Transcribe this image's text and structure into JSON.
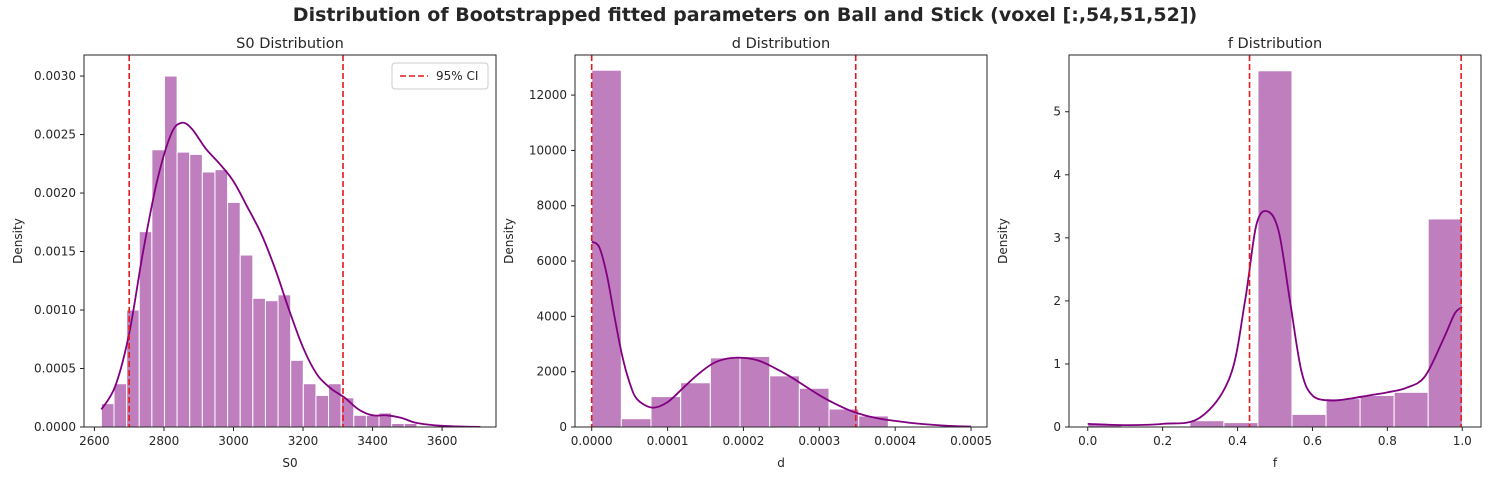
{
  "figure": {
    "title": "Distribution of Bootstrapped fitted parameters on Ball and Stick (voxel [:,54,51,52])"
  },
  "colors": {
    "bar_fill": "#bf7fbf",
    "bar_edge": "#ffffff",
    "kde_line": "#800080",
    "ci_line": "#e41a1c",
    "axes_edge": "#262626"
  },
  "legend": {
    "label": "95% CI",
    "placement": "upper right"
  },
  "chart_data": [
    {
      "type": "histogram",
      "title": "S0 Distribution",
      "xlabel": "S0",
      "ylabel": "Density",
      "xlim": [
        2570,
        3755
      ],
      "ylim": [
        0,
        0.00318
      ],
      "xticks": [
        2600,
        2800,
        3000,
        3200,
        3400,
        3600
      ],
      "xtick_labels": [
        "2600",
        "2800",
        "3000",
        "3200",
        "3400",
        "3600"
      ],
      "yticks": [
        0,
        0.0005,
        0.001,
        0.0015,
        0.002,
        0.0025,
        0.003
      ],
      "ytick_labels": [
        "0.0000",
        "0.0005",
        "0.0010",
        "0.0015",
        "0.0020",
        "0.0025",
        "0.0030"
      ],
      "bins_start": 2620,
      "bin_width": 36.3,
      "values": [
        0.0002,
        0.00037,
        0.001,
        0.00167,
        0.00237,
        0.003,
        0.00235,
        0.00233,
        0.00218,
        0.0022,
        0.00192,
        0.00147,
        0.0011,
        0.00108,
        0.00113,
        0.00057,
        0.00037,
        0.00027,
        0.00037,
        0.00025,
        0.0001,
        0.0001,
        0.00012,
        3e-05,
        3e-05,
        0,
        0,
        0,
        0,
        1e-05
      ],
      "kde_x": [
        2620,
        2660,
        2700,
        2740,
        2780,
        2820,
        2850,
        2880,
        2920,
        2960,
        3000,
        3040,
        3080,
        3120,
        3160,
        3200,
        3240,
        3280,
        3320,
        3360,
        3400,
        3440,
        3480,
        3520,
        3560,
        3600,
        3640,
        3680,
        3710
      ],
      "kde_y": [
        0.00015,
        0.00035,
        0.0008,
        0.0015,
        0.0021,
        0.0025,
        0.0026,
        0.00255,
        0.00238,
        0.00225,
        0.0021,
        0.00188,
        0.00165,
        0.00135,
        0.001,
        0.00068,
        0.00045,
        0.00033,
        0.00025,
        0.00015,
        0.0001,
        0.0001,
        8e-05,
        4e-05,
        2e-05,
        1e-05,
        5e-06,
        2e-06,
        1e-06
      ],
      "ci": [
        2700,
        3315
      ],
      "legend": true
    },
    {
      "type": "histogram",
      "title": "d Distribution",
      "xlabel": "d",
      "ylabel": "Density",
      "xlim": [
        -2.2e-05,
        0.000521
      ],
      "ylim": [
        0,
        13450
      ],
      "xticks": [
        0,
        0.0001,
        0.0002,
        0.0003,
        0.0004,
        0.0005
      ],
      "xtick_labels": [
        "0.0000",
        "0.0001",
        "0.0002",
        "0.0003",
        "0.0004",
        "0.0005"
      ],
      "yticks": [
        0,
        2000,
        4000,
        6000,
        8000,
        10000,
        12000
      ],
      "ytick_labels": [
        "0",
        "2000",
        "4000",
        "6000",
        "8000",
        "10000",
        "12000"
      ],
      "bins_start": 0,
      "bin_width": 3.91e-05,
      "values": [
        12900,
        300,
        1100,
        1600,
        2500,
        2550,
        1850,
        1400,
        650,
        400,
        0,
        0,
        0
      ],
      "kde_x": [
        0,
        1e-05,
        2e-05,
        3e-05,
        4e-05,
        5e-05,
        6e-05,
        8e-05,
        0.0001,
        0.00012,
        0.00014,
        0.00016,
        0.00018,
        0.0002,
        0.00022,
        0.00024,
        0.00026,
        0.00028,
        0.0003,
        0.00032,
        0.00034,
        0.00036,
        0.00038,
        0.0004,
        0.00042,
        0.00044,
        0.00046,
        0.00048,
        0.0005
      ],
      "kde_y": [
        6700,
        6500,
        5500,
        4000,
        2600,
        1600,
        1000,
        700,
        900,
        1400,
        1900,
        2300,
        2480,
        2500,
        2400,
        2150,
        1850,
        1500,
        1150,
        850,
        600,
        420,
        300,
        220,
        150,
        100,
        60,
        30,
        15
      ],
      "ci": [
        0,
        0.000348
      ],
      "legend": false
    },
    {
      "type": "histogram",
      "title": "f Distribution",
      "xlabel": "f",
      "ylabel": "Density",
      "xlim": [
        -0.05,
        1.05
      ],
      "ylim": [
        0,
        5.9
      ],
      "xticks": [
        0,
        0.2,
        0.4,
        0.6,
        0.8,
        1
      ],
      "xtick_labels": [
        "0.0",
        "0.2",
        "0.4",
        "0.6",
        "0.8",
        "1.0"
      ],
      "yticks": [
        0,
        1,
        2,
        3,
        4,
        5
      ],
      "ytick_labels": [
        "0",
        "1",
        "2",
        "3",
        "4",
        "5"
      ],
      "bins_start": 0,
      "bin_width": 0.0909,
      "values": [
        0.05,
        0,
        0,
        0.1,
        0.07,
        5.65,
        0.2,
        0.45,
        0.5,
        0.55,
        3.3
      ],
      "kde_x": [
        0,
        0.1,
        0.2,
        0.3,
        0.38,
        0.42,
        0.45,
        0.48,
        0.51,
        0.54,
        0.57,
        0.6,
        0.65,
        0.7,
        0.75,
        0.8,
        0.85,
        0.9,
        0.95,
        0.98,
        1.0
      ],
      "kde_y": [
        0.05,
        0.03,
        0.05,
        0.15,
        0.8,
        2.0,
        3.2,
        3.42,
        3.1,
        2.0,
        0.9,
        0.5,
        0.42,
        0.45,
        0.5,
        0.55,
        0.62,
        0.8,
        1.4,
        1.8,
        1.9
      ],
      "ci": [
        0.432,
        0.997
      ],
      "legend": false
    }
  ]
}
